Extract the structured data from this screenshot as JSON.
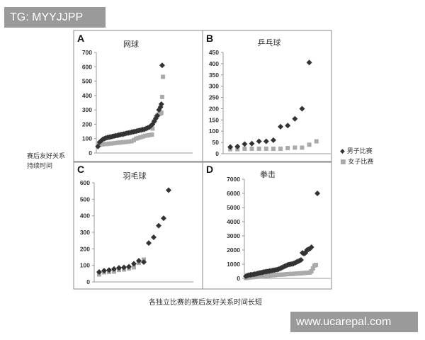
{
  "watermarks": {
    "top_left": "TG: MYYJJPP",
    "bottom_right": "www.ucarepal.com"
  },
  "y_label_lines": [
    "赛后友好关系",
    "持续时间"
  ],
  "x_label": "各独立比赛的赛后友好关系时间长短",
  "legend": [
    {
      "label": "男子比赛",
      "marker": "diamond",
      "color": "#333333"
    },
    {
      "label": "女子比赛",
      "marker": "square",
      "color": "#aaaaaa"
    }
  ],
  "chart_data": [
    {
      "panel": "A",
      "title": "网球",
      "type": "scatter",
      "ylim": [
        0,
        700
      ],
      "yticks": [
        "0",
        "100",
        "200",
        "300",
        "400",
        "500",
        "600",
        "700"
      ],
      "xlim": [
        0,
        60
      ],
      "series": [
        {
          "name": "男子比赛",
          "x": [
            1,
            2,
            3,
            4,
            5,
            6,
            7,
            8,
            9,
            10,
            11,
            12,
            13,
            14,
            15,
            16,
            17,
            18,
            19,
            20,
            21,
            22,
            23,
            24,
            25,
            26,
            27,
            28,
            29,
            30,
            31,
            32,
            33,
            34,
            35,
            36,
            37,
            38,
            39,
            40,
            40.5,
            41
          ],
          "y": [
            45,
            75,
            85,
            95,
            100,
            105,
            108,
            110,
            112,
            115,
            118,
            120,
            122,
            125,
            128,
            130,
            132,
            135,
            138,
            140,
            142,
            145,
            148,
            150,
            152,
            155,
            158,
            160,
            163,
            165,
            170,
            175,
            180,
            190,
            200,
            220,
            240,
            260,
            300,
            320,
            340,
            610
          ]
        },
        {
          "name": "女子比赛",
          "x": [
            1,
            2.4,
            3.8,
            5.2,
            6.6,
            8,
            9.4,
            10.8,
            12.2,
            13.6,
            15,
            16.4,
            17.8,
            19.2,
            20.6,
            22,
            23.4,
            24.8,
            26.2,
            27.6,
            29,
            30.4,
            31.8,
            33.2,
            34.6,
            35,
            36,
            37,
            38,
            39,
            40,
            40.5,
            41,
            41.5
          ],
          "y": [
            55,
            58,
            60,
            62,
            63,
            65,
            66,
            68,
            70,
            72,
            73,
            75,
            76,
            78,
            80,
            82,
            90,
            100,
            105,
            110,
            115,
            120,
            122,
            125,
            128,
            170,
            220,
            250,
            260,
            270,
            275,
            280,
            390,
            530
          ]
        }
      ]
    },
    {
      "panel": "B",
      "title": "乒乓球",
      "type": "scatter",
      "ylim": [
        0,
        450
      ],
      "yticks": [
        "0",
        "50",
        "100",
        "150",
        "200",
        "250",
        "300",
        "350",
        "400",
        "450"
      ],
      "xlim": [
        0,
        15
      ],
      "series": [
        {
          "name": "男子比赛",
          "x": [
            1,
            2,
            3,
            4,
            5,
            6,
            7,
            8,
            9,
            10,
            11,
            12
          ],
          "y": [
            30,
            32,
            43,
            45,
            55,
            55,
            60,
            120,
            125,
            155,
            200,
            405
          ]
        },
        {
          "name": "女子比赛",
          "x": [
            1,
            2,
            3,
            4,
            5,
            6,
            7,
            8,
            9,
            10,
            11,
            12,
            13
          ],
          "y": [
            20,
            20,
            22,
            22,
            22,
            22,
            22,
            22,
            25,
            27,
            27,
            40,
            55
          ]
        }
      ]
    },
    {
      "panel": "C",
      "title": "羽毛球",
      "type": "scatter",
      "ylim": [
        0,
        600
      ],
      "yticks": [
        "0",
        "100",
        "200",
        "300",
        "400",
        "500",
        "600"
      ],
      "xlim": [
        0,
        20
      ],
      "series": [
        {
          "name": "男子比赛",
          "x": [
            1,
            2,
            3,
            4,
            5,
            6,
            7,
            8,
            9,
            10,
            11,
            12,
            13,
            14,
            15
          ],
          "y": [
            60,
            68,
            72,
            78,
            85,
            88,
            92,
            110,
            128,
            120,
            235,
            270,
            340,
            385,
            555
          ]
        },
        {
          "name": "女子比赛",
          "x": [
            1,
            2,
            3,
            4,
            5,
            6,
            7,
            8,
            9,
            10
          ],
          "y": [
            45,
            58,
            60,
            62,
            72,
            75,
            82,
            88,
            115,
            135
          ]
        }
      ]
    },
    {
      "panel": "D",
      "title": "拳击",
      "type": "scatter",
      "ylim": [
        0,
        7000
      ],
      "yticks": [
        "0",
        "1000",
        "2000",
        "3000",
        "4000",
        "5000",
        "6000",
        "7000"
      ],
      "xlim": [
        0,
        58
      ],
      "series": [
        {
          "name": "男子比赛",
          "x": [
            1,
            2,
            3,
            4,
            5,
            6,
            7,
            8,
            9,
            10,
            11,
            12,
            13,
            14,
            15,
            16,
            17,
            18,
            19,
            20,
            21,
            22,
            23,
            24,
            25,
            26,
            27,
            28,
            29,
            30,
            31,
            32,
            33,
            34,
            35,
            36,
            37,
            38,
            39,
            40,
            41,
            42,
            43,
            44,
            45,
            49
          ],
          "y": [
            150,
            200,
            230,
            250,
            260,
            280,
            300,
            320,
            350,
            380,
            400,
            420,
            450,
            470,
            480,
            500,
            520,
            540,
            560,
            580,
            600,
            620,
            650,
            700,
            750,
            800,
            850,
            900,
            950,
            980,
            1000,
            1020,
            1050,
            1100,
            1150,
            1200,
            1250,
            1300,
            1800,
            1750,
            1800,
            2000,
            2050,
            2100,
            2200,
            6000
          ]
        },
        {
          "name": "女子比赛",
          "x": [
            1,
            2,
            3,
            4,
            5,
            6,
            7,
            8,
            9,
            10,
            11,
            12,
            13,
            14,
            15,
            16,
            17,
            18,
            19,
            20,
            21,
            22,
            23,
            24,
            25,
            26,
            27,
            28,
            29,
            30,
            31,
            32,
            33,
            34,
            35,
            36,
            37,
            38,
            39,
            40,
            41,
            42,
            43,
            44,
            45,
            46,
            47,
            48
          ],
          "y": [
            20,
            40,
            60,
            70,
            80,
            90,
            100,
            110,
            120,
            130,
            140,
            150,
            160,
            170,
            180,
            190,
            200,
            210,
            220,
            230,
            240,
            250,
            255,
            260,
            265,
            270,
            280,
            290,
            300,
            305,
            310,
            315,
            320,
            330,
            340,
            350,
            355,
            360,
            370,
            380,
            390,
            400,
            400,
            420,
            500,
            700,
            900,
            950
          ]
        }
      ]
    }
  ]
}
